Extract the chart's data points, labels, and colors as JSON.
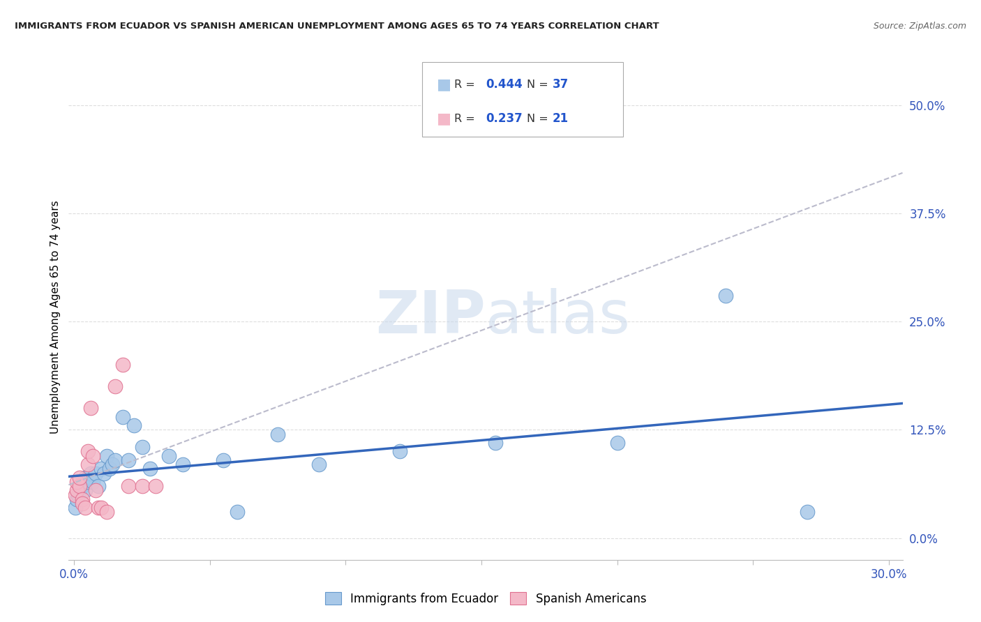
{
  "title": "IMMIGRANTS FROM ECUADOR VS SPANISH AMERICAN UNEMPLOYMENT AMONG AGES 65 TO 74 YEARS CORRELATION CHART",
  "source": "Source: ZipAtlas.com",
  "ylabel": "Unemployment Among Ages 65 to 74 years",
  "xlim": [
    -0.002,
    0.305
  ],
  "ylim": [
    -0.025,
    0.535
  ],
  "ytick_values": [
    0.0,
    0.125,
    0.25,
    0.375,
    0.5
  ],
  "ytick_labels": [
    "0.0%",
    "12.5%",
    "25.0%",
    "37.5%",
    "50.0%"
  ],
  "xtick_values": [
    0.0,
    0.05,
    0.1,
    0.15,
    0.2,
    0.25,
    0.3
  ],
  "xtick_labels": [
    "0.0%",
    "",
    "",
    "",
    "",
    "",
    "30.0%"
  ],
  "grid_yticks": [
    0.0,
    0.125,
    0.25,
    0.375,
    0.5
  ],
  "R_blue": 0.444,
  "N_blue": 37,
  "R_pink": 0.237,
  "N_pink": 21,
  "blue_dot_color": "#A8C8E8",
  "blue_dot_edge": "#6699CC",
  "pink_dot_color": "#F4B8C8",
  "pink_dot_edge": "#E07090",
  "blue_line_color": "#3366BB",
  "pink_line_color": "#BBBBCC",
  "watermark": "ZIPatlas",
  "blue_x": [
    0.0005,
    0.001,
    0.0015,
    0.002,
    0.002,
    0.003,
    0.003,
    0.004,
    0.004,
    0.005,
    0.005,
    0.006,
    0.007,
    0.008,
    0.009,
    0.01,
    0.011,
    0.012,
    0.013,
    0.014,
    0.015,
    0.018,
    0.02,
    0.022,
    0.025,
    0.028,
    0.035,
    0.04,
    0.055,
    0.06,
    0.075,
    0.09,
    0.12,
    0.155,
    0.2,
    0.24,
    0.27
  ],
  "blue_y": [
    0.035,
    0.045,
    0.05,
    0.055,
    0.06,
    0.06,
    0.065,
    0.055,
    0.07,
    0.065,
    0.07,
    0.075,
    0.065,
    0.075,
    0.06,
    0.08,
    0.075,
    0.095,
    0.08,
    0.085,
    0.09,
    0.14,
    0.09,
    0.13,
    0.105,
    0.08,
    0.095,
    0.085,
    0.09,
    0.03,
    0.12,
    0.085,
    0.1,
    0.11,
    0.11,
    0.28,
    0.03
  ],
  "pink_x": [
    0.0005,
    0.001,
    0.001,
    0.002,
    0.002,
    0.003,
    0.003,
    0.004,
    0.005,
    0.005,
    0.006,
    0.007,
    0.008,
    0.009,
    0.01,
    0.012,
    0.015,
    0.018,
    0.02,
    0.025,
    0.03
  ],
  "pink_y": [
    0.05,
    0.055,
    0.065,
    0.06,
    0.07,
    0.045,
    0.04,
    0.035,
    0.085,
    0.1,
    0.15,
    0.095,
    0.055,
    0.035,
    0.035,
    0.03,
    0.175,
    0.2,
    0.06,
    0.06,
    0.06
  ]
}
